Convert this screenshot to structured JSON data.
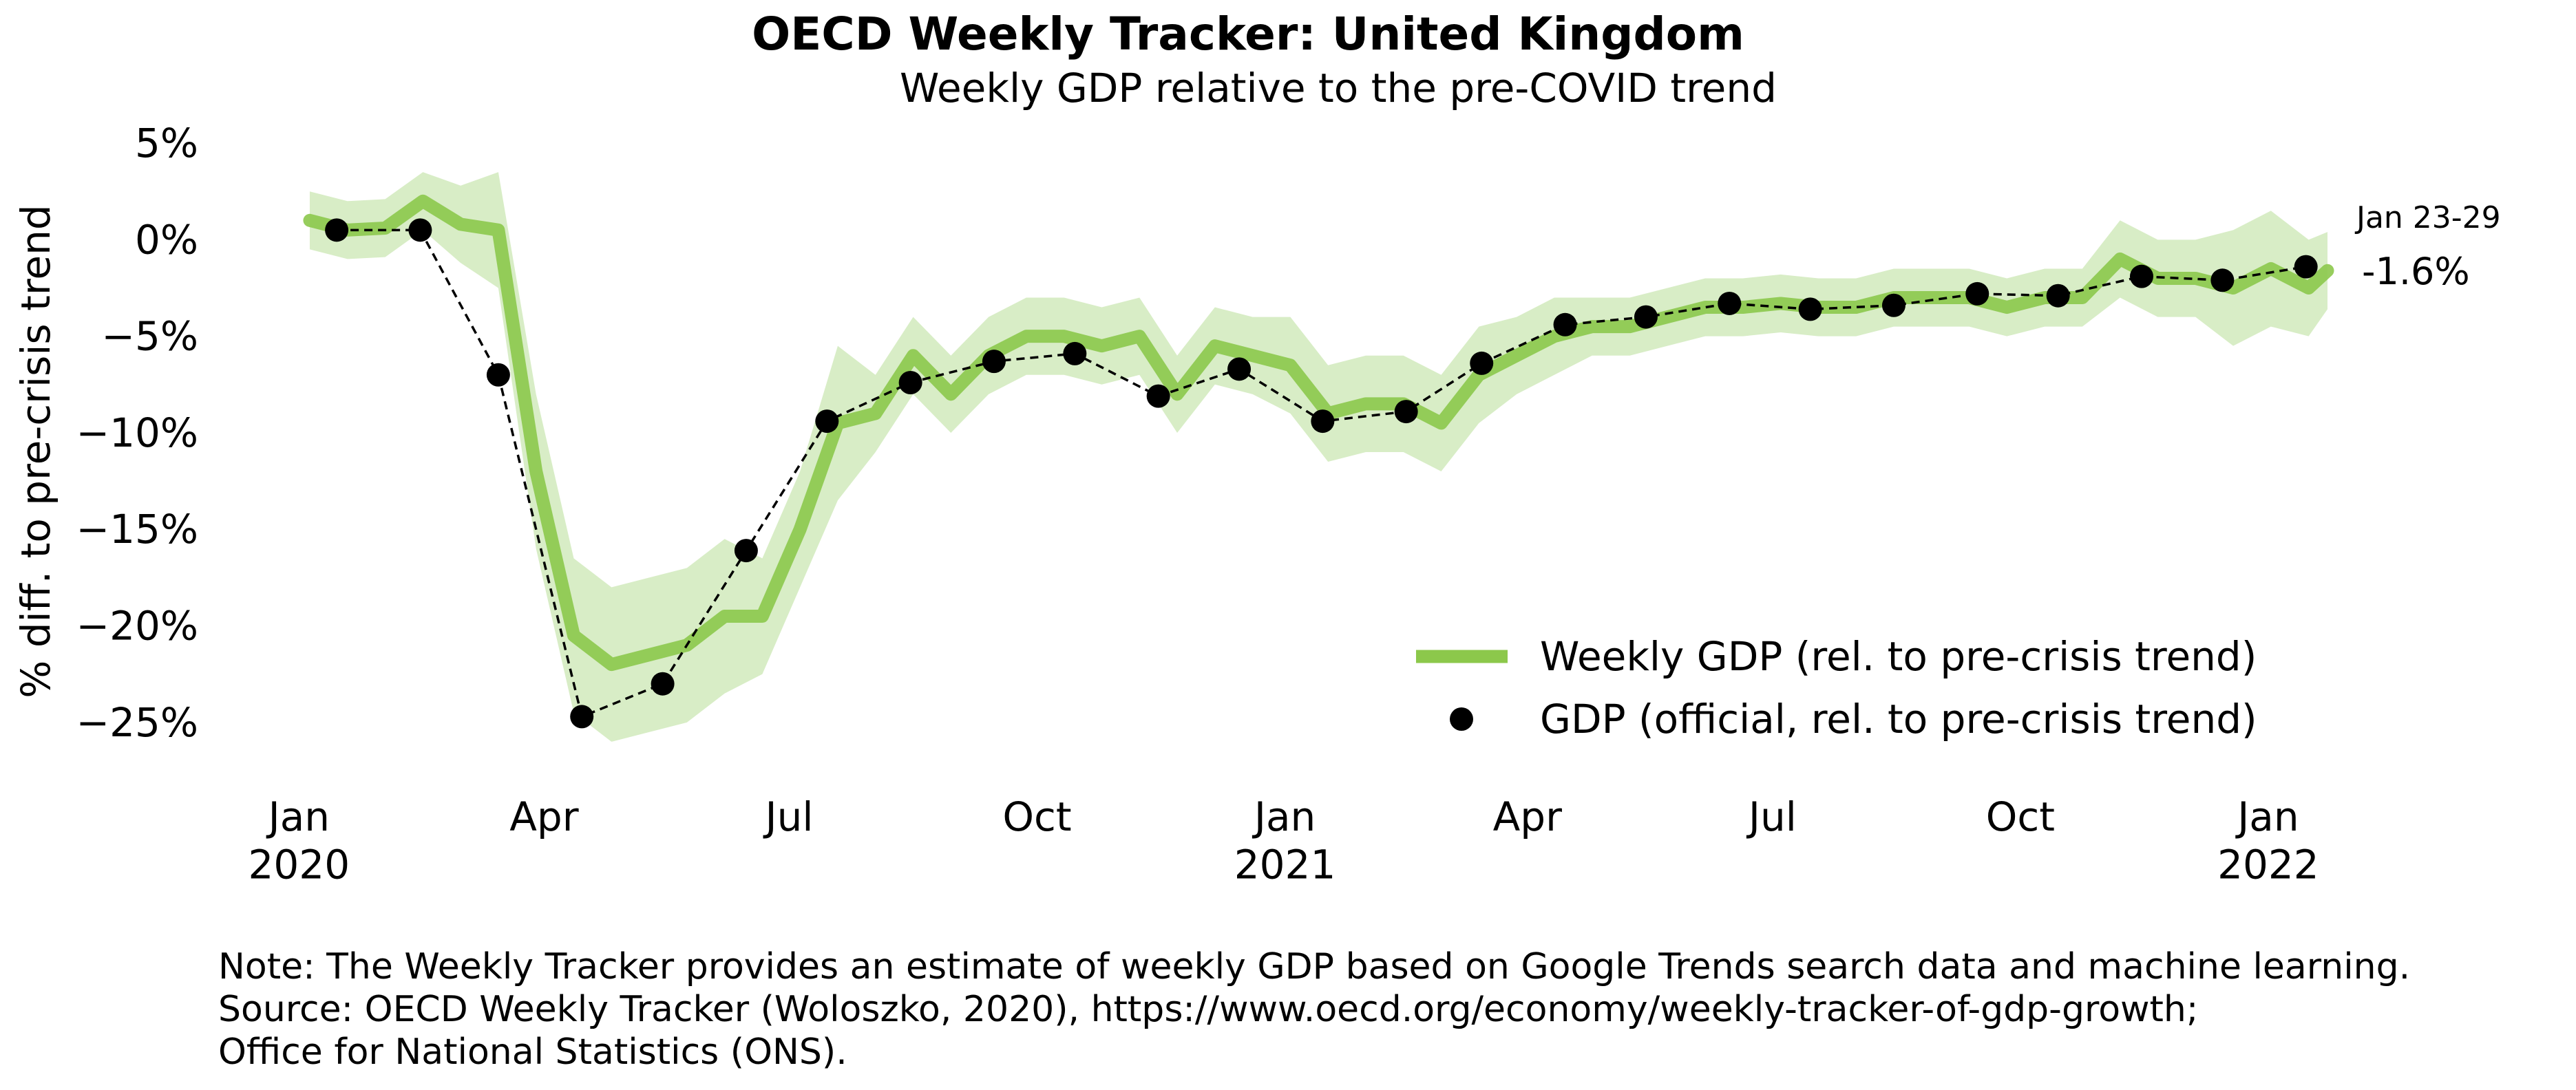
{
  "chart_data": {
    "type": "line",
    "title": "OECD Weekly Tracker: United Kingdom",
    "subtitle": "Weekly GDP relative to the pre-COVID trend",
    "y_label": "% diff. to pre-crisis trend",
    "xlim": [
      "2019-12-01",
      "2022-02-15"
    ],
    "xticks": [
      {
        "value": "2020-01-01",
        "label": "Jan\n2020"
      },
      {
        "value": "2020-04-01",
        "label": "Apr"
      },
      {
        "value": "2020-07-01",
        "label": "Jul"
      },
      {
        "value": "2020-10-01",
        "label": "Oct"
      },
      {
        "value": "2021-01-01",
        "label": "Jan\n2021"
      },
      {
        "value": "2021-04-01",
        "label": "Apr"
      },
      {
        "value": "2021-07-01",
        "label": "Jul"
      },
      {
        "value": "2021-10-01",
        "label": "Oct"
      },
      {
        "value": "2022-01-01",
        "label": "Jan\n2022"
      }
    ],
    "ylim": [
      -28,
      6
    ],
    "yticks": [
      {
        "value": -25,
        "label": "−25%"
      },
      {
        "value": -20,
        "label": "−20%"
      },
      {
        "value": -15,
        "label": "−15%"
      },
      {
        "value": -10,
        "label": "−10%"
      },
      {
        "value": -5,
        "label": "−5%"
      },
      {
        "value": 0,
        "label": "0%"
      },
      {
        "value": 5,
        "label": "5%"
      }
    ],
    "grid": false,
    "legend": "lower right",
    "series": [
      {
        "name": "Weekly GDP (rel. to pre-crisis trend)",
        "color": "#8cc84b",
        "x": [
          "2020-01-05",
          "2020-01-19",
          "2020-02-02",
          "2020-02-16",
          "2020-03-01",
          "2020-03-15",
          "2020-03-29",
          "2020-04-12",
          "2020-04-26",
          "2020-05-10",
          "2020-05-24",
          "2020-06-07",
          "2020-06-21",
          "2020-07-05",
          "2020-07-19",
          "2020-08-02",
          "2020-08-16",
          "2020-08-30",
          "2020-09-13",
          "2020-09-27",
          "2020-10-11",
          "2020-10-25",
          "2020-11-08",
          "2020-11-22",
          "2020-12-06",
          "2020-12-20",
          "2021-01-03",
          "2021-01-17",
          "2021-01-31",
          "2021-02-14",
          "2021-02-28",
          "2021-03-14",
          "2021-03-28",
          "2021-04-11",
          "2021-04-25",
          "2021-05-09",
          "2021-05-23",
          "2021-06-06",
          "2021-06-20",
          "2021-07-04",
          "2021-07-18",
          "2021-08-01",
          "2021-08-15",
          "2021-08-29",
          "2021-09-12",
          "2021-09-26",
          "2021-10-10",
          "2021-10-24",
          "2021-11-07",
          "2021-11-21",
          "2021-12-05",
          "2021-12-19",
          "2022-01-02",
          "2022-01-16",
          "2022-01-23"
        ],
        "values": [
          1.0,
          0.5,
          0.6,
          2.0,
          0.8,
          0.5,
          -12,
          -20.5,
          -22,
          -21.5,
          -21,
          -19.5,
          -19.5,
          -15,
          -9.5,
          -9,
          -6,
          -8,
          -6,
          -5,
          -5,
          -5.5,
          -5,
          -8,
          -5.5,
          -6,
          -6.5,
          -9,
          -8.5,
          -8.5,
          -9.5,
          -7,
          -6,
          -5,
          -4.5,
          -4.5,
          -4,
          -3.5,
          -3.5,
          -3.3,
          -3.5,
          -3.5,
          -3,
          -3,
          -3,
          -3.5,
          -3,
          -3,
          -1,
          -2,
          -2,
          -2.5,
          -1.5,
          -2.5,
          -1.6
        ],
        "value_labels": [
          null,
          null,
          null,
          null,
          null,
          null,
          null,
          null,
          null,
          null,
          null,
          null,
          null,
          null,
          null,
          null,
          null,
          null,
          null,
          null,
          null,
          null,
          null,
          null,
          null,
          null,
          null,
          null,
          null,
          null,
          null,
          null,
          null,
          null,
          null,
          null,
          null,
          null,
          null,
          null,
          null,
          null,
          null,
          null,
          null,
          null,
          null,
          null,
          null,
          null,
          null,
          null,
          null,
          null,
          "-1.6%"
        ],
        "lower": [
          -0.5,
          -1.0,
          -0.9,
          0.5,
          -1.2,
          -2.5,
          -16,
          -24.5,
          -26,
          -25.5,
          -25,
          -23.5,
          -22.5,
          -18,
          -13.5,
          -11,
          -8,
          -10,
          -8,
          -7,
          -7,
          -7.5,
          -7,
          -10,
          -7.5,
          -8,
          -9,
          -11.5,
          -11,
          -11,
          -12,
          -9.5,
          -8,
          -7,
          -6,
          -6,
          -5.5,
          -5,
          -5,
          -4.8,
          -5,
          -5,
          -4.5,
          -4.5,
          -4.5,
          -5,
          -4.5,
          -4.5,
          -3,
          -4,
          -4,
          -5.5,
          -4.5,
          -5,
          -3.6
        ],
        "upper": [
          2.5,
          2.0,
          2.1,
          3.5,
          2.8,
          3.5,
          -8,
          -16.5,
          -18,
          -17.5,
          -17,
          -15.5,
          -16.5,
          -12,
          -5.5,
          -7,
          -4,
          -6,
          -4,
          -3,
          -3,
          -3.5,
          -3,
          -6,
          -3.5,
          -4,
          -4,
          -6.5,
          -6,
          -6,
          -7,
          -4.5,
          -4,
          -3,
          -3,
          -3,
          -2.5,
          -2,
          -2,
          -1.8,
          -2,
          -2,
          -1.5,
          -1.5,
          -1.5,
          -2,
          -1.5,
          -1.5,
          1,
          0,
          0,
          0.5,
          1.5,
          0,
          0.4
        ],
        "band_color": "#d8edc6",
        "annotation": "Jan 23-29"
      },
      {
        "name": "GDP (official, rel. to pre-crisis trend)",
        "color": "#000000",
        "x": [
          "2020-01-15",
          "2020-02-15",
          "2020-03-15",
          "2020-04-15",
          "2020-05-15",
          "2020-06-15",
          "2020-07-15",
          "2020-08-15",
          "2020-09-15",
          "2020-10-15",
          "2020-11-15",
          "2020-12-15",
          "2021-01-15",
          "2021-02-15",
          "2021-03-15",
          "2021-04-15",
          "2021-05-15",
          "2021-06-15",
          "2021-07-15",
          "2021-08-15",
          "2021-09-15",
          "2021-10-15",
          "2021-11-15",
          "2021-12-15",
          "2022-01-15"
        ],
        "values": [
          0.5,
          0.5,
          -7,
          -24.7,
          -23,
          -16.1,
          -9.4,
          -7.4,
          -6.3,
          -5.9,
          -8.1,
          -6.7,
          -9.4,
          -8.9,
          -6.4,
          -4.4,
          -4.0,
          -3.3,
          -3.6,
          -3.4,
          -2.8,
          -2.9,
          -1.9,
          -2.1,
          -1.4
        ]
      }
    ],
    "note": [
      "Note: The Weekly Tracker provides an estimate of weekly GDP based on Google Trends search data and machine learning.",
      "Source: OECD Weekly Tracker (Woloszko, 2020), https://www.oecd.org/economy/weekly-tracker-of-gdp-growth;",
      "Office for National Statistics (ONS)."
    ]
  }
}
